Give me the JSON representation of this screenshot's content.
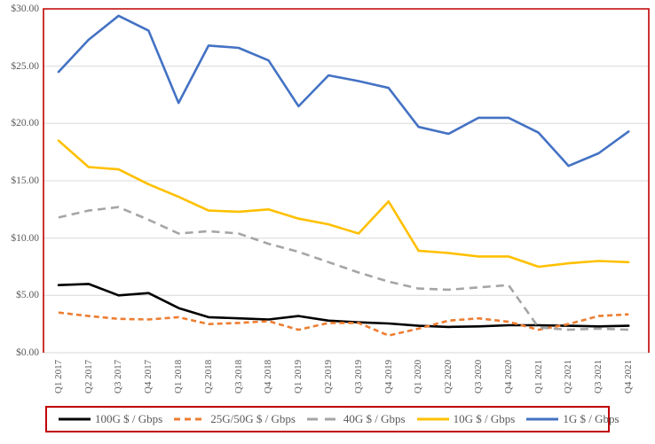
{
  "chart_data": {
    "type": "line",
    "title": "",
    "xlabel": "",
    "ylabel": "",
    "ylim": [
      0,
      30
    ],
    "grid": true,
    "legend_position": "bottom",
    "y_tick_labels_top_down": [
      "$30.00",
      "$25.00",
      "$20.00",
      "$15.00",
      "$10.00",
      "$5.00",
      "$0.00"
    ],
    "categories": [
      "Q1 2017",
      "Q2 2017",
      "Q3 2017",
      "Q4 2017",
      "Q1 2018",
      "Q2 2018",
      "Q3 2018",
      "Q4 2018",
      "Q1 2019",
      "Q2 2019",
      "Q3 2019",
      "Q4 2019",
      "Q1 2020",
      "Q2 2020",
      "Q3 2020",
      "Q4 2020",
      "Q1 2021",
      "Q2 2021",
      "Q3 2021",
      "Q4 2021"
    ],
    "series": [
      {
        "name": "100G $ / Gbps",
        "color": "#000000",
        "dash": "solid",
        "values": [
          5.9,
          6.0,
          5.0,
          5.2,
          3.9,
          3.1,
          3.0,
          2.9,
          3.2,
          2.8,
          2.65,
          2.55,
          2.35,
          2.25,
          2.3,
          2.4,
          2.4,
          2.35,
          2.3,
          2.35
        ]
      },
      {
        "name": "25G/50G $ / Gbps",
        "color": "#ED7D31",
        "dash": "dash",
        "values": [
          3.5,
          3.2,
          2.95,
          2.9,
          3.1,
          2.5,
          2.6,
          2.75,
          2.0,
          2.6,
          2.6,
          1.5,
          2.1,
          2.8,
          3.0,
          2.7,
          2.0,
          2.5,
          3.2,
          3.35
        ]
      },
      {
        "name": "40G $ / Gbps",
        "color": "#A5A5A5",
        "dash": "long-dash",
        "values": [
          11.8,
          12.4,
          12.7,
          11.6,
          10.4,
          10.6,
          10.4,
          9.5,
          8.8,
          7.9,
          7.0,
          6.2,
          5.6,
          5.5,
          5.7,
          5.9,
          2.2,
          2.0,
          2.1,
          2.0
        ]
      },
      {
        "name": "10G $ / Gbps",
        "color": "#FFC000",
        "dash": "solid",
        "values": [
          18.5,
          16.2,
          16.0,
          14.7,
          13.6,
          12.4,
          12.3,
          12.5,
          11.7,
          11.2,
          10.4,
          13.2,
          8.9,
          8.7,
          8.4,
          8.4,
          7.5,
          7.8,
          8.0,
          7.9
        ]
      },
      {
        "name": "1G $ / Gbps",
        "color": "#4472C4",
        "dash": "solid",
        "values": [
          24.5,
          27.3,
          29.4,
          28.1,
          21.8,
          26.8,
          26.6,
          25.5,
          21.5,
          24.2,
          23.7,
          23.1,
          19.7,
          19.1,
          20.5,
          20.5,
          19.2,
          16.3,
          17.4,
          19.3
        ]
      }
    ]
  },
  "style": {
    "plot_border_color": "#C00000",
    "legend_border_color": "#C00000",
    "gridline_color": "#D9D9D9",
    "text_color": "#595959",
    "background_color": "#FFFFFF"
  }
}
